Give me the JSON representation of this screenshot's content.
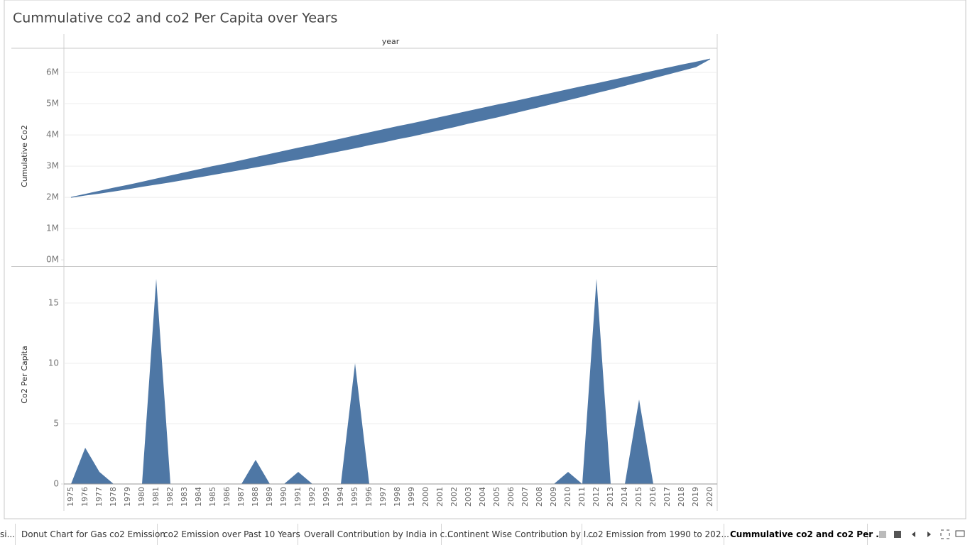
{
  "title": "Cummulative co2 and co2 Per Capita over Years",
  "chart_data": [
    {
      "type": "band",
      "header": "year",
      "ylabel": "Cumulative Co2",
      "color": "#4e77a5",
      "grid": true,
      "ylim": [
        -200000,
        6750000
      ],
      "yticks": [
        {
          "value": 0,
          "label": "0M"
        },
        {
          "value": 1000000,
          "label": "1M"
        },
        {
          "value": 2000000,
          "label": "2M"
        },
        {
          "value": 3000000,
          "label": "3M"
        },
        {
          "value": 4000000,
          "label": "4M"
        },
        {
          "value": 5000000,
          "label": "5M"
        },
        {
          "value": 6000000,
          "label": "6M"
        }
      ],
      "values": [
        2000000,
        2100000,
        2200000,
        2300000,
        2390000,
        2490000,
        2590000,
        2690000,
        2790000,
        2890000,
        2990000,
        3080000,
        3180000,
        3280000,
        3380000,
        3480000,
        3580000,
        3670000,
        3770000,
        3870000,
        3970000,
        4070000,
        4170000,
        4270000,
        4360000,
        4460000,
        4560000,
        4660000,
        4760000,
        4860000,
        4960000,
        5050000,
        5150000,
        5250000,
        5350000,
        5450000,
        5550000,
        5640000,
        5740000,
        5840000,
        5940000,
        6040000,
        6140000,
        6240000,
        6330000,
        6430000
      ],
      "lower_values": [
        2000000,
        2070000,
        2130000,
        2200000,
        2270000,
        2350000,
        2420000,
        2490000,
        2570000,
        2650000,
        2730000,
        2810000,
        2890000,
        2970000,
        3050000,
        3140000,
        3220000,
        3310000,
        3400000,
        3490000,
        3580000,
        3680000,
        3770000,
        3870000,
        3960000,
        4060000,
        4160000,
        4260000,
        4370000,
        4470000,
        4570000,
        4680000,
        4790000,
        4900000,
        5010000,
        5120000,
        5230000,
        5350000,
        5460000,
        5580000,
        5700000,
        5820000,
        5940000,
        6060000,
        6180000,
        6430000
      ]
    },
    {
      "type": "area",
      "ylabel": "Co2 Per Capita",
      "color": "#4e77a5",
      "grid": true,
      "ylim": [
        0,
        18
      ],
      "yticks": [
        0,
        5,
        10,
        15
      ],
      "categories": [
        "1975",
        "1976",
        "1977",
        "1978",
        "1979",
        "1980",
        "1981",
        "1982",
        "1983",
        "1984",
        "1985",
        "1986",
        "1987",
        "1988",
        "1989",
        "1990",
        "1991",
        "1992",
        "1993",
        "1994",
        "1995",
        "1996",
        "1997",
        "1998",
        "1999",
        "2000",
        "2001",
        "2002",
        "2003",
        "2004",
        "2005",
        "2006",
        "2007",
        "2008",
        "2009",
        "2010",
        "2011",
        "2012",
        "2013",
        "2014",
        "2015",
        "2016",
        "2017",
        "2018",
        "2019",
        "2020"
      ],
      "values": [
        0,
        3,
        1,
        0,
        0,
        0,
        17,
        0,
        0,
        0,
        0,
        0,
        0,
        2,
        0,
        0,
        1,
        0,
        0,
        0,
        10,
        0,
        0,
        0,
        0,
        0,
        0,
        0,
        0,
        0,
        0,
        0,
        0,
        0,
        0,
        1,
        0,
        17,
        0,
        0,
        7,
        0,
        0,
        0,
        0,
        0
      ]
    }
  ],
  "tabs": [
    "si...",
    "Donut Chart for Gas co2 Emission",
    "co2 Emission over Past 10 Years",
    "Overall Contribution by India in c...",
    "Continent Wise Contribution by I...",
    "co2 Emission from 1990 to 202...",
    "Cummulative co2 and co2 Per ..."
  ]
}
